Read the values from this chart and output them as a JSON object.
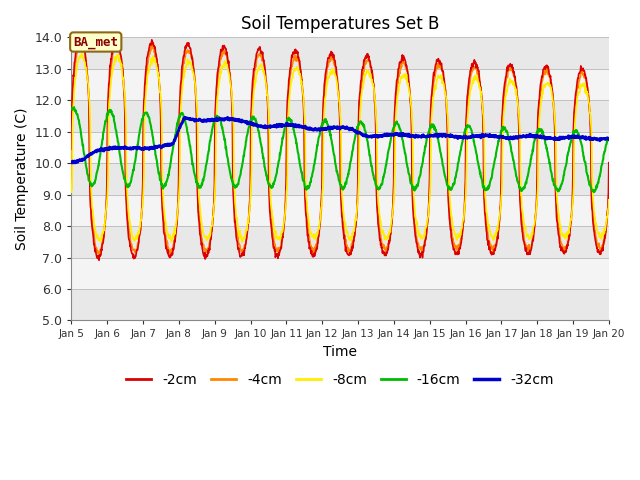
{
  "title": "Soil Temperatures Set B",
  "xlabel": "Time",
  "ylabel": "Soil Temperature (C)",
  "ylim": [
    5.0,
    14.0
  ],
  "yticks": [
    5.0,
    6.0,
    7.0,
    8.0,
    9.0,
    10.0,
    11.0,
    12.0,
    13.0,
    14.0
  ],
  "xtick_labels": [
    "Jan 5",
    "Jan 6",
    "Jan 7",
    "Jan 8",
    "Jan 9",
    "Jan 10",
    "Jan 11",
    "Jan 12",
    "Jan 13",
    "Jan 14",
    "Jan 15",
    "Jan 16",
    "Jan 17",
    "Jan 18",
    "Jan 19",
    "Jan 20"
  ],
  "series_colors": [
    "#dd0000",
    "#ff8800",
    "#ffee00",
    "#00bb00",
    "#0000cc"
  ],
  "series_labels": [
    "-2cm",
    "-4cm",
    "-8cm",
    "-16cm",
    "-32cm"
  ],
  "series_linewidths": [
    1.2,
    1.2,
    1.2,
    1.5,
    2.0
  ],
  "annotation_text": "BA_met",
  "background_stripe_colors": [
    "#e8e8e8",
    "#f4f4f4"
  ],
  "background_color": "#ffffff",
  "n_points": 1440,
  "start_day": 5,
  "end_day": 20
}
